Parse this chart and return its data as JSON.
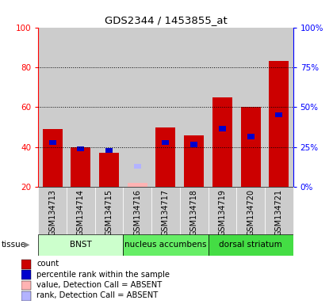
{
  "title": "GDS2344 / 1453855_at",
  "samples": [
    "GSM134713",
    "GSM134714",
    "GSM134715",
    "GSM134716",
    "GSM134717",
    "GSM134718",
    "GSM134719",
    "GSM134720",
    "GSM134721"
  ],
  "count_values": [
    49,
    40,
    37,
    null,
    50,
    46,
    65,
    60,
    83
  ],
  "rank_values": [
    41,
    38,
    37,
    null,
    41,
    40,
    48,
    44,
    55
  ],
  "absent_value": [
    null,
    null,
    null,
    22,
    null,
    null,
    null,
    null,
    null
  ],
  "absent_rank": [
    null,
    null,
    null,
    29,
    null,
    null,
    null,
    null,
    null
  ],
  "ylim_left": [
    20,
    100
  ],
  "yticks_left": [
    20,
    40,
    60,
    80,
    100
  ],
  "yticks_right": [
    0,
    25,
    50,
    75,
    100
  ],
  "ytick_labels_right": [
    "0%",
    "25%",
    "50%",
    "75%",
    "100%"
  ],
  "tissue_groups": [
    {
      "label": "BNST",
      "start": 0,
      "end": 3,
      "color": "#ccffcc"
    },
    {
      "label": "nucleus accumbens",
      "start": 3,
      "end": 6,
      "color": "#66ee66"
    },
    {
      "label": "dorsal striatum",
      "start": 6,
      "end": 9,
      "color": "#44dd44"
    }
  ],
  "bar_color_red": "#cc0000",
  "bar_color_blue": "#0000cc",
  "bar_color_absent_red": "#ffb3b3",
  "bar_color_absent_blue": "#b3b3ff",
  "col_bg_color": "#cccccc",
  "plot_bg_color": "#ffffff",
  "legend_items": [
    {
      "color": "#cc0000",
      "label": "count"
    },
    {
      "color": "#0000cc",
      "label": "percentile rank within the sample"
    },
    {
      "color": "#ffb3b3",
      "label": "value, Detection Call = ABSENT"
    },
    {
      "color": "#b3b3ff",
      "label": "rank, Detection Call = ABSENT"
    }
  ]
}
